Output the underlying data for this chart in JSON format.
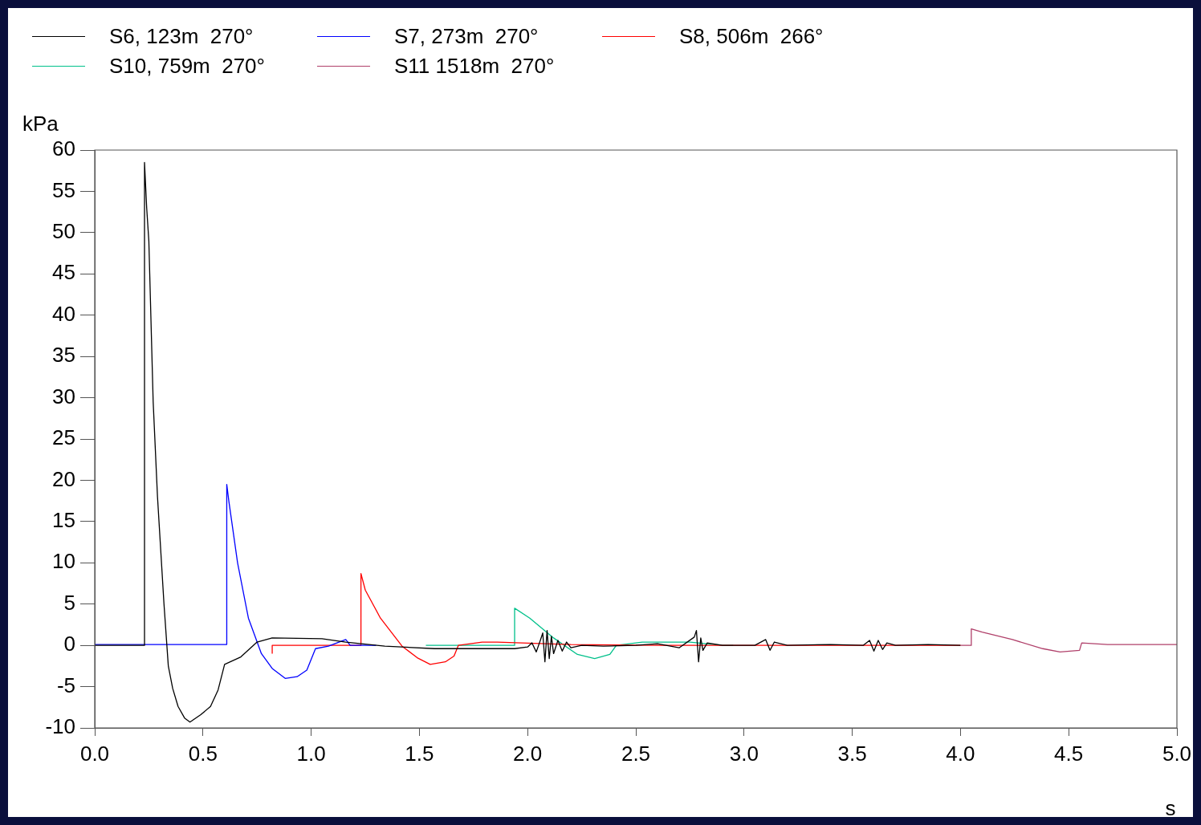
{
  "chart_data": {
    "type": "line",
    "xlabel": "s",
    "ylabel": "kPa",
    "xlim": [
      0,
      5
    ],
    "xticks": [
      {
        "value": 0,
        "label": "0.0"
      },
      {
        "value": 0.5,
        "label": "0.5"
      },
      {
        "value": 1,
        "label": "1.0"
      },
      {
        "value": 1.5,
        "label": "1.5"
      },
      {
        "value": 2,
        "label": "2.0"
      },
      {
        "value": 2.5,
        "label": "2.5"
      },
      {
        "value": 3,
        "label": "3.0"
      },
      {
        "value": 3.5,
        "label": "3.5"
      },
      {
        "value": 4,
        "label": "4.0"
      },
      {
        "value": 4.5,
        "label": "4.5"
      },
      {
        "value": 5,
        "label": "5.0"
      }
    ],
    "ylim": [
      -10,
      60
    ],
    "yticks": [
      -10,
      -5,
      0,
      5,
      10,
      15,
      20,
      25,
      30,
      35,
      40,
      45,
      50,
      55,
      60
    ],
    "grid": false,
    "legend": "top left",
    "marker": "none",
    "line_style": "solid",
    "series": [
      {
        "name": "S6, 123m  270°",
        "color": "#000000",
        "x": [
          0,
          0.23,
          0.23,
          0.24,
          0.25,
          0.27,
          0.29,
          0.32,
          0.34,
          0.36,
          0.385,
          0.415,
          0.44,
          0.49,
          0.535,
          0.57,
          0.6,
          0.675,
          0.75,
          0.82,
          1.05,
          1.16,
          1.34,
          1.57,
          1.94,
          2.0,
          2.02,
          2.04,
          2.06,
          2.07,
          2.08,
          2.09,
          2.1,
          2.11,
          2.12,
          2.14,
          2.16,
          2.18,
          2.2,
          2.25,
          2.35,
          2.5,
          2.6,
          2.7,
          2.77,
          2.78,
          2.79,
          2.8,
          2.81,
          2.83,
          2.9,
          3.05,
          3.1,
          3.12,
          3.14,
          3.2,
          3.4,
          3.55,
          3.58,
          3.6,
          3.62,
          3.64,
          3.66,
          3.7,
          3.85,
          4.0
        ],
        "values": [
          0,
          0,
          58.5,
          53,
          49,
          29.5,
          18,
          5,
          -2.5,
          -5.2,
          -7.4,
          -8.8,
          -9.3,
          -8.4,
          -7.4,
          -5.4,
          -2.3,
          -1.4,
          0.4,
          0.9,
          0.8,
          0.4,
          -0.1,
          -0.4,
          -0.4,
          -0.2,
          0.3,
          -0.8,
          0.7,
          1.5,
          -2,
          1.8,
          -1.6,
          1.1,
          -1,
          0.6,
          -0.7,
          0.4,
          -0.3,
          0,
          -0.1,
          0,
          0.2,
          -0.3,
          1,
          1.8,
          -2,
          0.9,
          -0.6,
          0.3,
          0,
          0,
          0.7,
          -0.6,
          0.4,
          0,
          0.1,
          0,
          0.6,
          -0.7,
          0.6,
          -0.5,
          0.3,
          0,
          0.1,
          0
        ]
      },
      {
        "name": "S7, 273m  270°",
        "color": "#0000ff",
        "x": [
          0,
          0.61,
          0.61,
          0.62,
          0.66,
          0.71,
          0.77,
          0.82,
          0.88,
          0.935,
          0.98,
          1.02,
          1.08,
          1.16,
          1.18,
          1.3
        ],
        "values": [
          0.1,
          0.1,
          19.5,
          17.4,
          10,
          3.3,
          -1,
          -2.8,
          -4,
          -3.8,
          -3,
          -0.4,
          -0.1,
          0.7,
          0,
          0
        ]
      },
      {
        "name": "S8, 506m  266°",
        "color": "#ff0000",
        "x": [
          0.82,
          0.82,
          0.83,
          1.23,
          1.23,
          1.25,
          1.32,
          1.42,
          1.49,
          1.55,
          1.62,
          1.66,
          1.68,
          1.79,
          1.86,
          2.2,
          2.6,
          3.0,
          3.5,
          4.0
        ],
        "values": [
          -1,
          0,
          0,
          0,
          8.7,
          6.7,
          3.3,
          -0.1,
          -1.5,
          -2.3,
          -2,
          -1.3,
          0,
          0.4,
          0.4,
          0.1,
          0,
          0,
          0,
          0
        ]
      },
      {
        "name": "S10, 759m  270°",
        "color": "#00c08a",
        "x": [
          1.53,
          1.94,
          1.94,
          2.01,
          2.12,
          2.23,
          2.31,
          2.38,
          2.41,
          2.53,
          2.75,
          2.9,
          2.95
        ],
        "values": [
          0,
          0,
          4.5,
          3.3,
          0.9,
          -1.1,
          -1.6,
          -1.1,
          0,
          0.4,
          0.4,
          0,
          0
        ]
      },
      {
        "name": "S11 1518m  270°",
        "color": "#b0406a",
        "x": [
          4.0,
          4.05,
          4.05,
          4.1,
          4.24,
          4.38,
          4.46,
          4.55,
          4.56,
          4.68,
          5.0
        ],
        "values": [
          0,
          0,
          2,
          1.6,
          0.7,
          -0.4,
          -0.8,
          -0.6,
          0.3,
          0.1,
          0.1
        ]
      }
    ]
  }
}
